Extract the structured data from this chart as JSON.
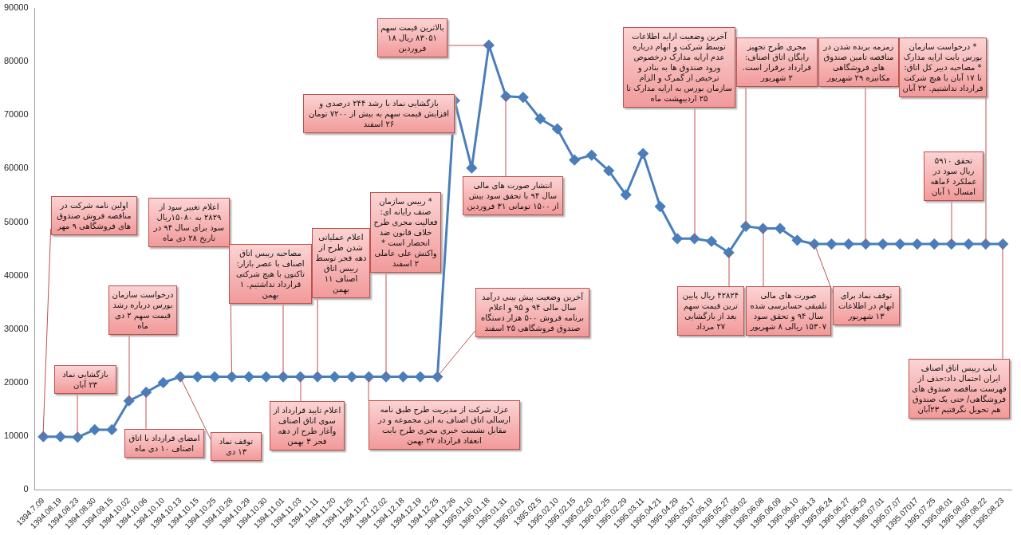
{
  "chart_data": {
    "type": "line",
    "categories": [
      "1394.7.09",
      "1394.08.19",
      "1394.08.23",
      "1394.08.30",
      "1394.09.15",
      "1394.10.02",
      "1394.10.06",
      "1394.10.10",
      "1394.10.13",
      "1394.10.15",
      "1394.10.25",
      "1394.10.28",
      "1394.10.29",
      "1394.10.30",
      "1394.11.01",
      "1394.11.03",
      "1394.11.11",
      "1394.11.20",
      "1394.11.25",
      "1394.11.27",
      "1394.12.02",
      "1394.12.18",
      "1394.12.19",
      "1394.12.25",
      "1394.12.26",
      "1395.01.10",
      "1395.01.18",
      "1395.01.31",
      "1395.02.01",
      "1395.02.5",
      "1395.02.10",
      "1395.02.15",
      "1395.02.20",
      "1395.02.25",
      "1395.02.29",
      "1395.03.11",
      "1395.04.21",
      "1395.04.29",
      "1395.05.17",
      "1395.05.19",
      "1395.05.27",
      "1395.06.02",
      "1395.06.08",
      "1395.06.09",
      "1395.06.10",
      "1395.06.13",
      "1395.06.24",
      "1395.06.27",
      "1395.06.29",
      "1395.07.01",
      "1395.07.07",
      "1395.07017",
      "1395.07.25",
      "1395.08.01",
      "1395.08.03",
      "1395.08.22",
      "1395.08.23"
    ],
    "series": [
      {
        "color": "#4a7ebb",
        "values": [
          9900,
          9900,
          9800,
          11200,
          11200,
          16600,
          18200,
          20000,
          21100,
          21100,
          21100,
          21100,
          21100,
          21100,
          21100,
          21100,
          21100,
          21100,
          21100,
          21100,
          21100,
          21100,
          21100,
          21100,
          72700,
          60100,
          83051,
          73500,
          73300,
          69300,
          67400,
          61600,
          62500,
          59600,
          55100,
          62800,
          52900,
          46900,
          46900,
          46400,
          44300,
          49200,
          48800,
          48800,
          46600,
          45900,
          45900,
          45900,
          45900,
          45900,
          45900,
          45900,
          45900,
          45900,
          45900,
          45900,
          45900
        ]
      }
    ],
    "ylim": [
      0,
      90000
    ],
    "yticks": [
      0,
      10000,
      20000,
      30000,
      40000,
      50000,
      60000,
      70000,
      80000,
      90000
    ],
    "grid": false,
    "legend": false,
    "marker": "diamond",
    "line_style": "solid",
    "annotations": [
      {
        "text": "اولین نامه شرکت در مناقصه فروش صندوق های فروشگاهی ۹ مهر",
        "x": "1394.7.09",
        "y": 9900
      },
      {
        "text": "بازگشایی نماد ۲۳ آبان",
        "x": "1394.08.23",
        "y": 9800
      },
      {
        "text": "درخواست سازمان بورس درباره رشد قیمت سهم ۲ دی ماه",
        "x": "1394.10.02",
        "y": 16600
      },
      {
        "text": "امضای قرارداد با اتاق اصناف ۱۰ دی ماه",
        "x": "1394.10.06",
        "y": 18200
      },
      {
        "text": "اعلام تغییر سود از ۲۸۲۹ به ۱۵۰۸۰ریال سود برای سال ۹۴ در تاریخ ۲۸ دی ماه",
        "x": "1394.10.28",
        "y": 21100
      },
      {
        "text": "توقف نماد ۱۳ دی",
        "x": "1394.10.13",
        "y": 21100
      },
      {
        "text": "مصاحبه رییس اتاق اصناف با عصر بازار: تاکنون با هیچ شرکتی قرارداد نداشتیم. ۱ بهمن",
        "x": "1394.11.01",
        "y": 21100
      },
      {
        "text": "اعلام عملیاتی شدن طرح از دهه فجر توسط رییس اتاق اصناف ۱۱ بهمن",
        "x": "1394.11.11",
        "y": 21100
      },
      {
        "text": "اعلام تایید قرارداد از سوی اتاق اصناف وآغاز طرح از دهه فجر ۳ بهمن",
        "x": "1394.11.03",
        "y": 21100
      },
      {
        "text": "* رییس سازمان صنف رایانه ای: فعالیت مجری طرح خلاف قانون ضد انحصار است * واکنش علی عاملی ۲ اسفند",
        "x": "1394.12.02",
        "y": 21100
      },
      {
        "text": "عزل شرکت از مدیریت طرح طبق نامه ارسالی اتاق اصناف به این مجموعه و در مقابل نشست خبری مجری طرح بابت انعقاد قرارداد ۲۷ بهمن",
        "x": "1394.11.27",
        "y": 21100
      },
      {
        "text": "آخرین وضعیت پیش بینی درآمد سال مالی ۹۴ و ۹۵ و اعلام برنامه فروش ۵۰۰ هزار دستگاه صندوق فروشگاهی ۲۵ اسفند",
        "x": "1394.12.25",
        "y": 21100
      },
      {
        "text": "بازگشایی نماد با رشد ۲۴۴ درصدی و افزایش قیمت سهم به بیش از ۷۲۰۰ تومان ۲۶ اسفند",
        "x": "1394.12.26",
        "y": 72700
      },
      {
        "text": "بالاترین قیمت سهم ۸۳۰۵۱ ریال ۱۸ فروردین",
        "x": "1395.01.18",
        "y": 83051
      },
      {
        "text": "انتشار صورت های مالی سال ۹۴ با تحقق سود بیش از ۱۵۰۰ تومانی ۳۱ فروردین",
        "x": "1395.01.31",
        "y": 73500
      },
      {
        "text": "آخرین وضعیت ارایه اطلاعات توسط شرکت و ابهام درباره عدم ارایه مدارک درخصوص ورود صندوق ها به بنادر و ترخیص از گمرک و الزام سازمان بورس به ارایه مدارک تا ۲۵ اردیبهشت ماه",
        "x": "1395.05.17",
        "y": 46900
      },
      {
        "text": "مجری طرح تجهیز رایگان اتاق اصناف: قرارداد برقرار است. ۲ شهریور",
        "x": "1395.06.02",
        "y": 49200
      },
      {
        "text": "زمزمه برنده شدن در مناقصه تامین صندوق های فروشگاهی مکانیزه ۲۹ شهریور",
        "x": "1395.06.29",
        "y": 45900
      },
      {
        "text": "* درخواست سازمان بورس بابت ارایه مدارک * مصاحبه دبیر کل اتاق: تا ۱۷ آبان با هیچ شرکت قرارداد نداشتیم. ۲۲ آبان",
        "x": "1395.08.22",
        "y": 45900
      },
      {
        "text": "تحقق ۵۹۱۰ ریال سود در عملکرد ۶ماهه امسال ۱ آبان",
        "x": "1395.08.01",
        "y": 45900
      },
      {
        "text": "۴۲۸۲۴ ریال پایین ترین قیمت سهم بعد از بازگشایی ۲۷ مرداد",
        "x": "1395.05.27",
        "y": 44300
      },
      {
        "text": "صورت های مالی تلفیقی حسابرسی شده سال ۹۴ و تحقق سود ۱۵۳۰۷ ریالی ۸ شهریور",
        "x": "1395.06.08",
        "y": 48800
      },
      {
        "text": "توقف نماد برای ابهام در اطلاعات ۱۳ شهریور",
        "x": "1395.06.13",
        "y": 45900
      },
      {
        "text": "نایب رییس اتاق اصناف ایران احتمال داد:حذف از فهرست مناقصه صندوق های فروشگاهی/ حتی یک صندوق هم تحویل نگرفتیم ۲۳آبان",
        "x": "1395.08.23",
        "y": 45900
      }
    ]
  }
}
